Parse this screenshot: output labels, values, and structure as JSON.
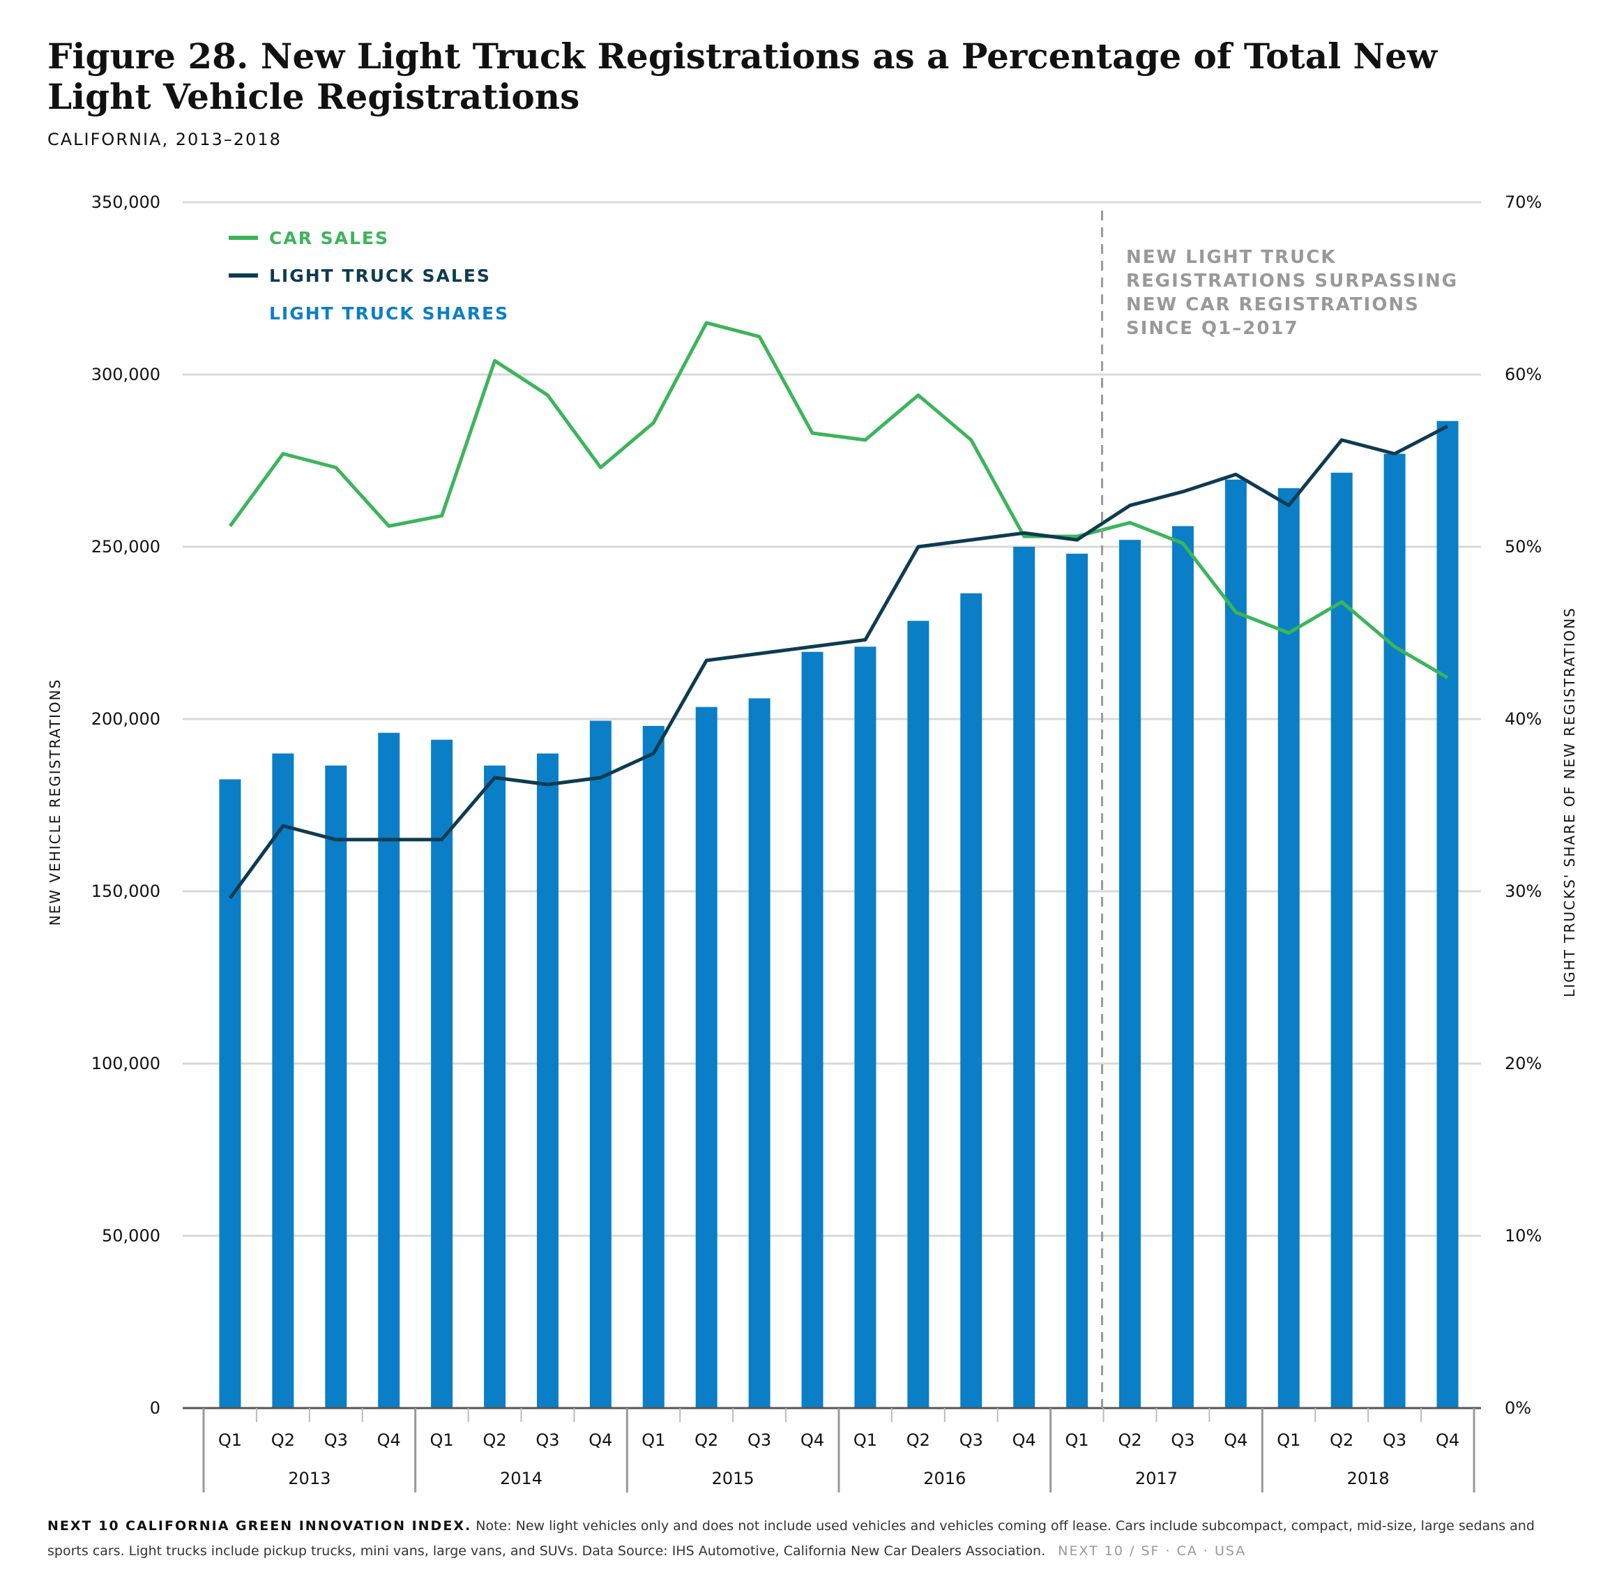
{
  "title": "Figure 28. New Light Truck Registrations as a Percentage of Total New Light Vehicle Registrations",
  "subtitle": "CALIFORNIA, 2013–2018",
  "colors": {
    "car_sales": "#3cb55a",
    "light_truck_sales": "#0d3b52",
    "light_truck_shares": "#0a7fc7",
    "grid": "#d9d9d9",
    "annotation": "#999999"
  },
  "chart_data": {
    "type": "bar",
    "categories": [
      "Q1",
      "Q2",
      "Q3",
      "Q4",
      "Q1",
      "Q2",
      "Q3",
      "Q4",
      "Q1",
      "Q2",
      "Q3",
      "Q4",
      "Q1",
      "Q2",
      "Q3",
      "Q4",
      "Q1",
      "Q2",
      "Q3",
      "Q4",
      "Q1",
      "Q2",
      "Q3",
      "Q4"
    ],
    "years": [
      "2013",
      "2014",
      "2015",
      "2016",
      "2017",
      "2018"
    ],
    "y_left": {
      "label": "NEW VEHICLE REGISTRATIONS",
      "ylim": [
        0,
        350000
      ],
      "ticks": [
        "0",
        "50,000",
        "100,000",
        "150,000",
        "200,000",
        "250,000",
        "300,000",
        "350,000"
      ]
    },
    "y_right": {
      "label": "LIGHT TRUCKS' SHARE OF NEW REGISTRATIONS",
      "ylim": [
        0,
        70
      ],
      "ticks": [
        "0%",
        "10%",
        "20%",
        "30%",
        "40%",
        "50%",
        "60%",
        "70%"
      ]
    },
    "series": [
      {
        "name": "LIGHT TRUCK SHARES",
        "type": "bar",
        "axis": "right",
        "values": [
          36.5,
          38.0,
          37.3,
          39.2,
          38.8,
          37.3,
          38.0,
          39.9,
          39.6,
          40.7,
          41.2,
          43.9,
          44.2,
          45.7,
          47.3,
          50.0,
          49.6,
          50.4,
          51.2,
          53.9,
          53.4,
          54.3,
          55.4,
          57.3
        ]
      },
      {
        "name": "CAR SALES",
        "type": "line",
        "axis": "left",
        "values": [
          256000,
          277000,
          273000,
          256000,
          259000,
          304000,
          294000,
          273000,
          286000,
          315000,
          311000,
          283000,
          281000,
          294000,
          281000,
          253000,
          253000,
          257000,
          251000,
          231000,
          225000,
          234000,
          221000,
          212000
        ]
      },
      {
        "name": "LIGHT TRUCK SALES",
        "type": "line",
        "axis": "left",
        "values": [
          148000,
          169000,
          165000,
          165000,
          165000,
          183000,
          181000,
          183000,
          190000,
          217000,
          219000,
          221000,
          223000,
          250000,
          252000,
          254000,
          252000,
          262000,
          266000,
          271000,
          262000,
          281000,
          277000,
          285000
        ]
      }
    ],
    "grid": true,
    "legend_position": "top-left",
    "annotation": [
      "NEW LIGHT TRUCK",
      "REGISTRATIONS SURPASSING",
      "NEW CAR REGISTRATIONS",
      "SINCE Q1–2017"
    ]
  },
  "footer": {
    "index_label": "NEXT 10 CALIFORNIA GREEN INNOVATION INDEX.",
    "note": " Note: New light vehicles only and does not include used vehicles and vehicles coming off lease. Cars include subcompact, compact, mid-size, large sedans and sports cars. Light trucks include pickup trucks, mini vans, large vans, and SUVs. Data Source: IHS Automotive, California New Car Dealers Association.",
    "brand": "NEXT 10  /  SF · CA · USA"
  }
}
